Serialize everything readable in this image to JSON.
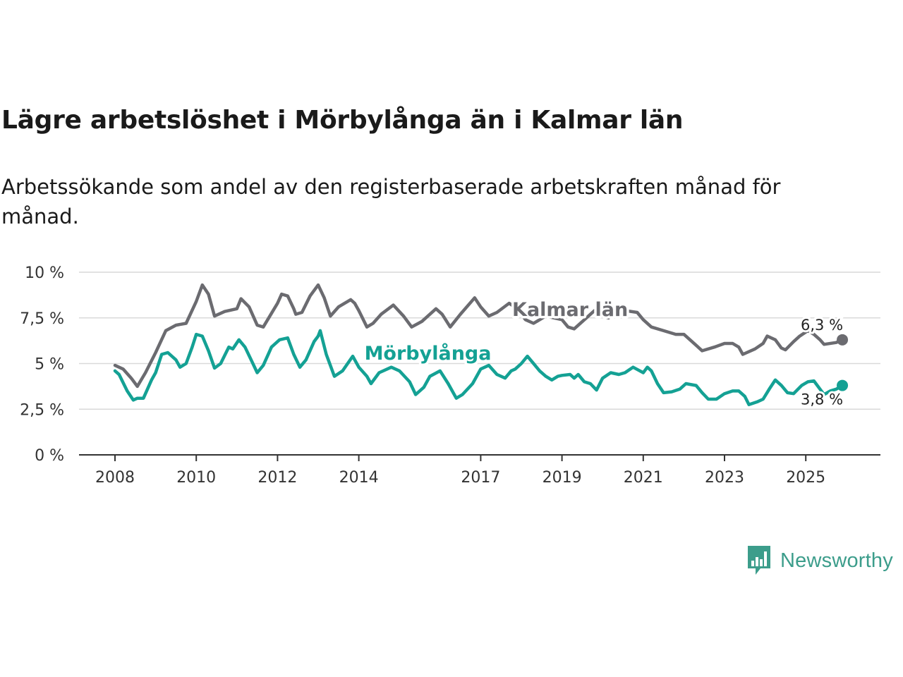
{
  "title": "Lägre arbetslöshet i Mörbylånga än i Kalmar län",
  "subtitle": "Arbetssökande som andel av den registerbaserade arbetskraften månad för månad.",
  "brand": {
    "name": "Newsworthy"
  },
  "colors": {
    "kalmar": "#6b6b70",
    "morbylanga": "#14a194",
    "brand": "#3c9d8b",
    "grid": "#d9d9d9",
    "axis": "#333333"
  },
  "chart_data": {
    "type": "line",
    "title": "Lägre arbetslöshet i Mörbylånga än i Kalmar län",
    "xlabel": "",
    "ylabel": "",
    "xlim": [
      2008,
      2026.6
    ],
    "ylim": [
      0,
      10
    ],
    "y_ticks": [
      0,
      2.5,
      5,
      7.5,
      10
    ],
    "y_tick_labels": [
      "0 %",
      "2,5 %",
      "5 %",
      "7,5 %",
      "10 %"
    ],
    "x_ticks": [
      2008,
      2010,
      2012,
      2014,
      2017,
      2019,
      2021,
      2023,
      2025
    ],
    "x_tick_labels": [
      "2008",
      "2010",
      "2012",
      "2014",
      "2017",
      "2019",
      "2021",
      "2023",
      "2025"
    ],
    "grid": true,
    "series": [
      {
        "name": "Kalmar län",
        "label": "Kalmar län",
        "end_label": "6,3 %",
        "color": "#6b6b70",
        "points": [
          [
            2008.0,
            4.9
          ],
          [
            2008.2,
            4.7
          ],
          [
            2008.4,
            4.2
          ],
          [
            2008.55,
            3.75
          ],
          [
            2008.75,
            4.5
          ],
          [
            2009.0,
            5.6
          ],
          [
            2009.25,
            6.8
          ],
          [
            2009.5,
            7.1
          ],
          [
            2009.75,
            7.2
          ],
          [
            2010.0,
            8.4
          ],
          [
            2010.15,
            9.3
          ],
          [
            2010.3,
            8.8
          ],
          [
            2010.45,
            7.6
          ],
          [
            2010.7,
            7.85
          ],
          [
            2011.0,
            8.0
          ],
          [
            2011.1,
            8.55
          ],
          [
            2011.3,
            8.1
          ],
          [
            2011.5,
            7.1
          ],
          [
            2011.65,
            7.0
          ],
          [
            2012.0,
            8.3
          ],
          [
            2012.1,
            8.8
          ],
          [
            2012.25,
            8.7
          ],
          [
            2012.4,
            8.0
          ],
          [
            2012.45,
            7.7
          ],
          [
            2012.6,
            7.8
          ],
          [
            2012.8,
            8.7
          ],
          [
            2013.0,
            9.3
          ],
          [
            2013.15,
            8.6
          ],
          [
            2013.3,
            7.6
          ],
          [
            2013.5,
            8.1
          ],
          [
            2013.8,
            8.5
          ],
          [
            2013.9,
            8.3
          ],
          [
            2014.0,
            7.9
          ],
          [
            2014.2,
            7.0
          ],
          [
            2014.35,
            7.2
          ],
          [
            2014.55,
            7.7
          ],
          [
            2014.85,
            8.2
          ],
          [
            2015.1,
            7.6
          ],
          [
            2015.3,
            7.0
          ],
          [
            2015.55,
            7.3
          ],
          [
            2015.9,
            8.0
          ],
          [
            2016.05,
            7.7
          ],
          [
            2016.25,
            7.0
          ],
          [
            2016.5,
            7.7
          ],
          [
            2016.85,
            8.6
          ],
          [
            2017.0,
            8.1
          ],
          [
            2017.2,
            7.6
          ],
          [
            2017.4,
            7.8
          ],
          [
            2017.7,
            8.3
          ],
          [
            2017.9,
            8.0
          ],
          [
            2018.1,
            7.4
          ],
          [
            2018.3,
            7.2
          ],
          [
            2018.6,
            7.6
          ],
          [
            2018.8,
            7.5
          ],
          [
            2019.0,
            7.4
          ],
          [
            2019.15,
            7.0
          ],
          [
            2019.3,
            6.9
          ],
          [
            2019.6,
            7.5
          ],
          [
            2019.8,
            7.9
          ],
          [
            2020.0,
            7.6
          ],
          [
            2020.15,
            7.5
          ],
          [
            2020.3,
            8.1
          ],
          [
            2020.55,
            7.9
          ],
          [
            2020.85,
            7.8
          ],
          [
            2021.0,
            7.4
          ],
          [
            2021.2,
            7.0
          ],
          [
            2021.5,
            6.8
          ],
          [
            2021.8,
            6.6
          ],
          [
            2022.0,
            6.6
          ],
          [
            2022.3,
            6.0
          ],
          [
            2022.45,
            5.7
          ],
          [
            2022.75,
            5.9
          ],
          [
            2023.0,
            6.1
          ],
          [
            2023.2,
            6.1
          ],
          [
            2023.35,
            5.9
          ],
          [
            2023.45,
            5.5
          ],
          [
            2023.75,
            5.8
          ],
          [
            2023.95,
            6.1
          ],
          [
            2024.05,
            6.5
          ],
          [
            2024.25,
            6.3
          ],
          [
            2024.4,
            5.85
          ],
          [
            2024.5,
            5.75
          ],
          [
            2024.7,
            6.2
          ],
          [
            2024.85,
            6.5
          ],
          [
            2025.05,
            6.8
          ],
          [
            2025.2,
            6.6
          ],
          [
            2025.35,
            6.3
          ],
          [
            2025.45,
            6.05
          ],
          [
            2025.75,
            6.15
          ],
          [
            2025.9,
            6.3
          ]
        ]
      },
      {
        "name": "Mörbylånga",
        "label": "Mörbylånga",
        "end_label": "3,8 %",
        "color": "#14a194",
        "points": [
          [
            2008.0,
            4.6
          ],
          [
            2008.1,
            4.4
          ],
          [
            2008.3,
            3.5
          ],
          [
            2008.45,
            3.0
          ],
          [
            2008.55,
            3.1
          ],
          [
            2008.7,
            3.1
          ],
          [
            2008.9,
            4.1
          ],
          [
            2009.0,
            4.5
          ],
          [
            2009.15,
            5.5
          ],
          [
            2009.3,
            5.6
          ],
          [
            2009.5,
            5.2
          ],
          [
            2009.6,
            4.8
          ],
          [
            2009.75,
            5.0
          ],
          [
            2009.9,
            5.9
          ],
          [
            2010.0,
            6.6
          ],
          [
            2010.15,
            6.5
          ],
          [
            2010.3,
            5.7
          ],
          [
            2010.45,
            4.75
          ],
          [
            2010.6,
            5.0
          ],
          [
            2010.8,
            5.9
          ],
          [
            2010.9,
            5.8
          ],
          [
            2011.05,
            6.3
          ],
          [
            2011.2,
            5.9
          ],
          [
            2011.35,
            5.2
          ],
          [
            2011.5,
            4.5
          ],
          [
            2011.65,
            4.9
          ],
          [
            2011.85,
            5.9
          ],
          [
            2011.9,
            6.0
          ],
          [
            2012.05,
            6.3
          ],
          [
            2012.25,
            6.4
          ],
          [
            2012.4,
            5.5
          ],
          [
            2012.55,
            4.8
          ],
          [
            2012.7,
            5.2
          ],
          [
            2012.9,
            6.2
          ],
          [
            2013.0,
            6.5
          ],
          [
            2013.05,
            6.8
          ],
          [
            2013.2,
            5.5
          ],
          [
            2013.4,
            4.3
          ],
          [
            2013.6,
            4.6
          ],
          [
            2013.85,
            5.4
          ],
          [
            2014.0,
            4.8
          ],
          [
            2014.2,
            4.3
          ],
          [
            2014.3,
            3.9
          ],
          [
            2014.5,
            4.5
          ],
          [
            2014.8,
            4.8
          ],
          [
            2015.0,
            4.6
          ],
          [
            2015.25,
            4.0
          ],
          [
            2015.4,
            3.3
          ],
          [
            2015.6,
            3.7
          ],
          [
            2015.75,
            4.3
          ],
          [
            2016.0,
            4.6
          ],
          [
            2016.2,
            3.9
          ],
          [
            2016.4,
            3.1
          ],
          [
            2016.55,
            3.3
          ],
          [
            2016.8,
            3.9
          ],
          [
            2017.0,
            4.7
          ],
          [
            2017.2,
            4.9
          ],
          [
            2017.4,
            4.4
          ],
          [
            2017.6,
            4.2
          ],
          [
            2017.75,
            4.6
          ],
          [
            2017.85,
            4.7
          ],
          [
            2018.0,
            5.0
          ],
          [
            2018.15,
            5.4
          ],
          [
            2018.3,
            5.0
          ],
          [
            2018.45,
            4.6
          ],
          [
            2018.6,
            4.3
          ],
          [
            2018.75,
            4.1
          ],
          [
            2018.9,
            4.3
          ],
          [
            2019.0,
            4.35
          ],
          [
            2019.2,
            4.4
          ],
          [
            2019.3,
            4.2
          ],
          [
            2019.4,
            4.4
          ],
          [
            2019.55,
            4.0
          ],
          [
            2019.7,
            3.9
          ],
          [
            2019.85,
            3.55
          ],
          [
            2020.0,
            4.2
          ],
          [
            2020.2,
            4.5
          ],
          [
            2020.4,
            4.4
          ],
          [
            2020.55,
            4.5
          ],
          [
            2020.75,
            4.8
          ],
          [
            2021.0,
            4.5
          ],
          [
            2021.1,
            4.8
          ],
          [
            2021.2,
            4.6
          ],
          [
            2021.35,
            3.9
          ],
          [
            2021.5,
            3.4
          ],
          [
            2021.7,
            3.45
          ],
          [
            2021.9,
            3.6
          ],
          [
            2022.05,
            3.9
          ],
          [
            2022.3,
            3.8
          ],
          [
            2022.45,
            3.4
          ],
          [
            2022.6,
            3.05
          ],
          [
            2022.8,
            3.05
          ],
          [
            2023.0,
            3.35
          ],
          [
            2023.2,
            3.5
          ],
          [
            2023.35,
            3.5
          ],
          [
            2023.5,
            3.2
          ],
          [
            2023.6,
            2.75
          ],
          [
            2023.8,
            2.9
          ],
          [
            2023.95,
            3.05
          ],
          [
            2024.1,
            3.6
          ],
          [
            2024.25,
            4.1
          ],
          [
            2024.4,
            3.8
          ],
          [
            2024.55,
            3.4
          ],
          [
            2024.7,
            3.35
          ],
          [
            2024.9,
            3.8
          ],
          [
            2025.05,
            4.0
          ],
          [
            2025.2,
            4.05
          ],
          [
            2025.35,
            3.6
          ],
          [
            2025.45,
            3.3
          ],
          [
            2025.6,
            3.5
          ],
          [
            2025.75,
            3.6
          ],
          [
            2025.9,
            3.8
          ]
        ]
      }
    ]
  }
}
